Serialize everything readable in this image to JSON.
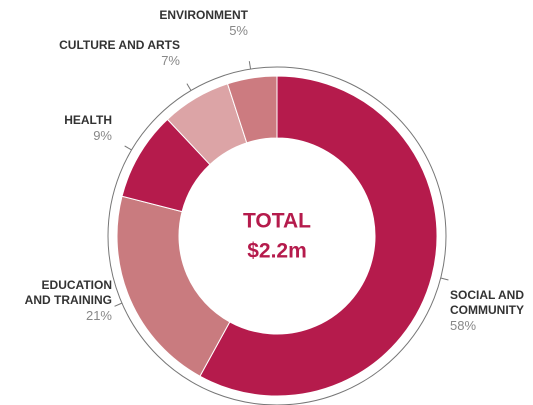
{
  "chart_data": {
    "type": "pie",
    "center_title": "TOTAL",
    "center_value": "$2.2m",
    "categories": [
      "SOCIAL AND COMMUNITY",
      "EDUCATION AND TRAINING",
      "HEALTH",
      "CULTURE AND ARTS",
      "ENVIRONMENT"
    ],
    "values": [
      58,
      21,
      9,
      7,
      5
    ],
    "value_labels": [
      "58%",
      "21%",
      "9%",
      "7%",
      "5%"
    ],
    "colors": [
      "#b51b4c",
      "#c97b7f",
      "#b51b4c",
      "#dca4a6",
      "#cc7b80"
    ]
  }
}
